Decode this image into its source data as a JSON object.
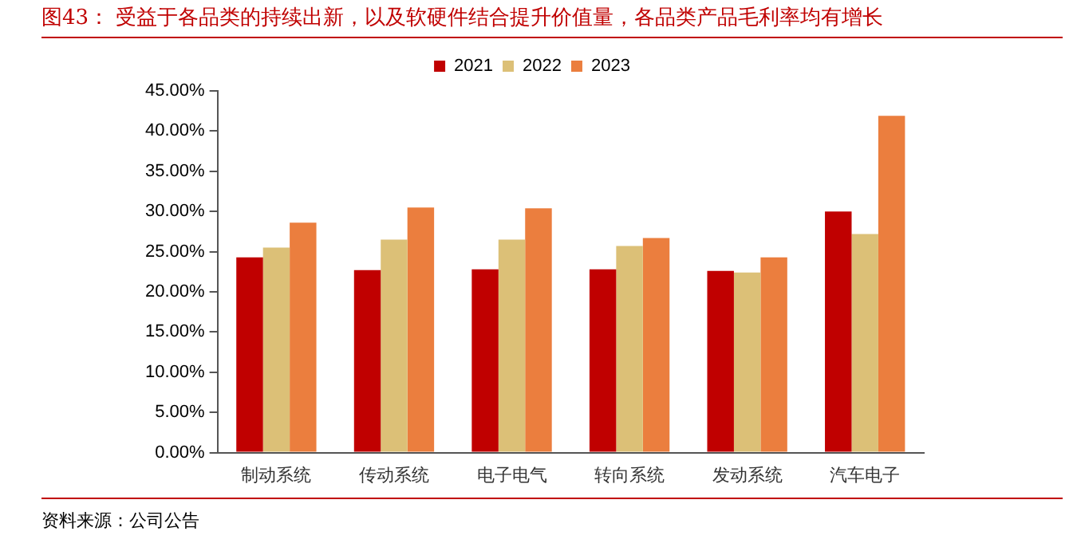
{
  "chart_data": {
    "type": "bar",
    "title": "图43：  受益于各品类的持续出新，以及软硬件结合提升价值量，各品类产品毛利率均有增长",
    "categories": [
      "制动系统",
      "传动系统",
      "电子电气",
      "转向系统",
      "发动系统",
      "汽车电子"
    ],
    "series": [
      {
        "name": "2021",
        "color": "#c00000",
        "values": [
          24.3,
          22.7,
          22.8,
          22.8,
          22.6,
          30.0
        ]
      },
      {
        "name": "2022",
        "color": "#dcc077",
        "values": [
          25.5,
          26.5,
          26.5,
          25.7,
          22.4,
          27.2
        ]
      },
      {
        "name": "2023",
        "color": "#eb7e3e",
        "values": [
          28.6,
          30.5,
          30.4,
          26.7,
          24.3,
          41.9
        ]
      }
    ],
    "ylim": [
      0,
      45
    ],
    "yticks": [
      {
        "value": 0,
        "label": "0.00%"
      },
      {
        "value": 5,
        "label": "5.00%"
      },
      {
        "value": 10,
        "label": "10.00%"
      },
      {
        "value": 15,
        "label": "15.00%"
      },
      {
        "value": 20,
        "label": "20.00%"
      },
      {
        "value": 25,
        "label": "25.00%"
      },
      {
        "value": 30,
        "label": "30.00%"
      },
      {
        "value": 35,
        "label": "35.00%"
      },
      {
        "value": 40,
        "label": "40.00%"
      },
      {
        "value": 45,
        "label": "45.00%"
      }
    ],
    "grid": false,
    "legend": "top",
    "annotations": [
      "资料来源：公司公告"
    ]
  }
}
